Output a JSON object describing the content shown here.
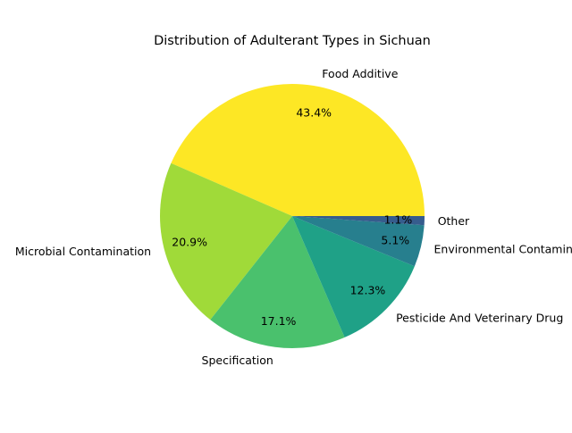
{
  "chart_data": {
    "type": "pie",
    "title": "Distribution of Adulterant Types in Sichuan",
    "slices": [
      {
        "label": "Food Additive",
        "value": 43.4,
        "pct_label": "43.4%",
        "color": "#fde725"
      },
      {
        "label": "Microbial Contamination",
        "value": 20.9,
        "pct_label": "20.9%",
        "color": "#a0da39"
      },
      {
        "label": "Specification",
        "value": 17.1,
        "pct_label": "17.1%",
        "color": "#4ac16d"
      },
      {
        "label": "Pesticide And Veterinary Drug",
        "value": 12.3,
        "pct_label": "12.3%",
        "color": "#1fa187"
      },
      {
        "label": "Environmental Contamination",
        "value": 5.1,
        "pct_label": "5.1%",
        "color": "#277f8e"
      },
      {
        "label": "Other",
        "value": 1.1,
        "pct_label": "1.1%",
        "color": "#365c8d"
      }
    ],
    "start_angle": "0° (3 o'clock), counter-clockwise",
    "legend": "none",
    "grid": false
  }
}
